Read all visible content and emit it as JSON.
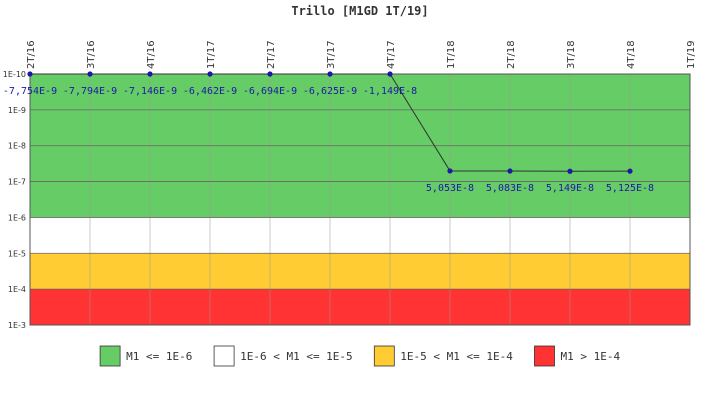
{
  "chart_data": {
    "type": "line",
    "title": "Trillo [M1GD 1T/19]",
    "scale": "log",
    "y_axis_direction": "inverted",
    "y_tick_labels": [
      "1E-10",
      "1E-9",
      "1E-8",
      "1E-7",
      "1E-6",
      "1E-5",
      "1E-4",
      "1E-3"
    ],
    "categories": [
      "2T/16",
      "3T/16",
      "4T/16",
      "1T/17",
      "2T/17",
      "3T/17",
      "4T/17",
      "1T/18",
      "2T/18",
      "3T/18",
      "4T/18",
      "1T/19"
    ],
    "series": [
      {
        "color": "#1a1aa6",
        "points": [
          {
            "x": "2T/16",
            "label": "-7,754E-9"
          },
          {
            "x": "3T/16",
            "label": "-7,794E-9"
          },
          {
            "x": "4T/16",
            "label": "-7,146E-9"
          },
          {
            "x": "1T/17",
            "label": "-6,462E-9"
          },
          {
            "x": "2T/17",
            "label": "-6,694E-9"
          },
          {
            "x": "3T/17",
            "label": "-6,625E-9"
          },
          {
            "x": "4T/17",
            "label": "-1,149E-8"
          },
          {
            "x": "1T/18",
            "label": "5,053E-8"
          },
          {
            "x": "2T/18",
            "label": "5,083E-8"
          },
          {
            "x": "3T/18",
            "label": "5,149E-8"
          },
          {
            "x": "4T/18",
            "label": "5,125E-8"
          }
        ]
      }
    ],
    "bands": [
      {
        "from_tick": 0,
        "to_tick": 4,
        "color": "#66cc66"
      },
      {
        "from_tick": 4,
        "to_tick": 5,
        "color": "#ffffff"
      },
      {
        "from_tick": 5,
        "to_tick": 6,
        "color": "#ffcc33"
      },
      {
        "from_tick": 6,
        "to_tick": 7,
        "color": "#ff3333"
      }
    ],
    "legend": {
      "position": "bottom",
      "entries": [
        {
          "label": "M1 <= 1E-6",
          "color": "#66cc66"
        },
        {
          "label": "1E-6 < M1 <= 1E-5",
          "color": "#ffffff"
        },
        {
          "label": "1E-5 < M1 <= 1E-4",
          "color": "#ffcc33"
        },
        {
          "label": "M1 > 1E-4",
          "color": "#ff3333"
        }
      ]
    }
  }
}
